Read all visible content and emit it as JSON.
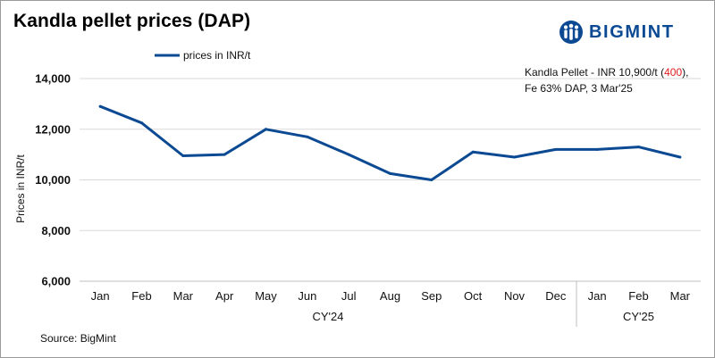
{
  "chart_data": {
    "type": "line",
    "title": "Kandla pellet prices (DAP)",
    "ylabel": "Prices in INR/t",
    "ylim": [
      6000,
      14000
    ],
    "yticks": [
      6000,
      8000,
      10000,
      12000,
      14000
    ],
    "ytick_labels": [
      "6,000",
      "8,000",
      "10,000",
      "12,000",
      "14,000"
    ],
    "grid": "horizontal",
    "legend_position": "top",
    "categories": [
      "Jan",
      "Feb",
      "Mar",
      "Apr",
      "May",
      "Jun",
      "Jul",
      "Aug",
      "Sep",
      "Oct",
      "Nov",
      "Dec",
      "Jan",
      "Feb",
      "Mar"
    ],
    "groups": [
      {
        "label": "CY'24",
        "count": 12
      },
      {
        "label": "CY'25",
        "count": 3
      }
    ],
    "series": [
      {
        "name": "prices in INR/t",
        "color": "#0b4a93",
        "values": [
          12900,
          12250,
          10950,
          11000,
          12000,
          11700,
          11000,
          10250,
          10000,
          11100,
          10900,
          11200,
          11200,
          11300,
          10900
        ]
      }
    ],
    "annotation": {
      "line1_prefix": "Kandla Pellet - INR 10,900/t (",
      "line1_change": "400",
      "line1_suffix": "),",
      "line2": "Fe 63% DAP, 3 Mar'25",
      "change_color": "#e01b1b"
    },
    "source": "Source: BigMint"
  },
  "brand": {
    "name": "BIGMINT",
    "icon": "bigmint-logo-icon",
    "color": "#0b4a93"
  }
}
